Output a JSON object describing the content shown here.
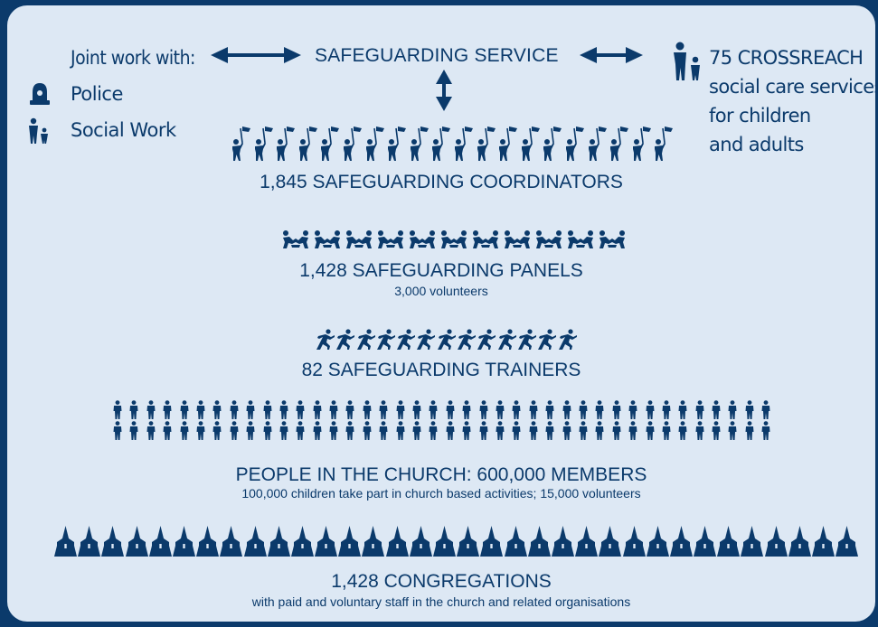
{
  "joint_work": {
    "heading": "Joint work with:",
    "partners": [
      {
        "label": "Police",
        "icon": "police-helmet-icon"
      },
      {
        "label": "Social Work",
        "icon": "adult-child-icon"
      }
    ]
  },
  "service": {
    "label": "SAFEGUARDING SERVICE"
  },
  "crossreach": {
    "lines": [
      "75 CROSSREACH",
      "social care services",
      "for children",
      "and adults"
    ],
    "icon": "adult-child-icon"
  },
  "tiers": [
    {
      "title": "1,845 SAFEGUARDING COORDINATORS",
      "subtitle": "",
      "icon": "flag-person-icon",
      "count": 20
    },
    {
      "title": "1,428 SAFEGUARDING PANELS",
      "subtitle": "3,000 volunteers",
      "icon": "group-icon",
      "count": 11
    },
    {
      "title": "82 SAFEGUARDING TRAINERS",
      "subtitle": "",
      "icon": "running-person-icon",
      "count": 13
    },
    {
      "title": "PEOPLE IN THE CHURCH: 600,000 MEMBERS",
      "subtitle": "100,000 children take part in church based activities; 15,000 volunteers",
      "icon": "person-icon",
      "count": 80
    },
    {
      "title": "1,428 CONGREGATIONS",
      "subtitle": "with paid and voluntary staff in the church and related organisations",
      "icon": "church-spire-icon",
      "count": 34
    }
  ],
  "colors": {
    "background": "#0b3a6b",
    "panel": "#dde8f4",
    "ink": "#0b3a6b"
  }
}
